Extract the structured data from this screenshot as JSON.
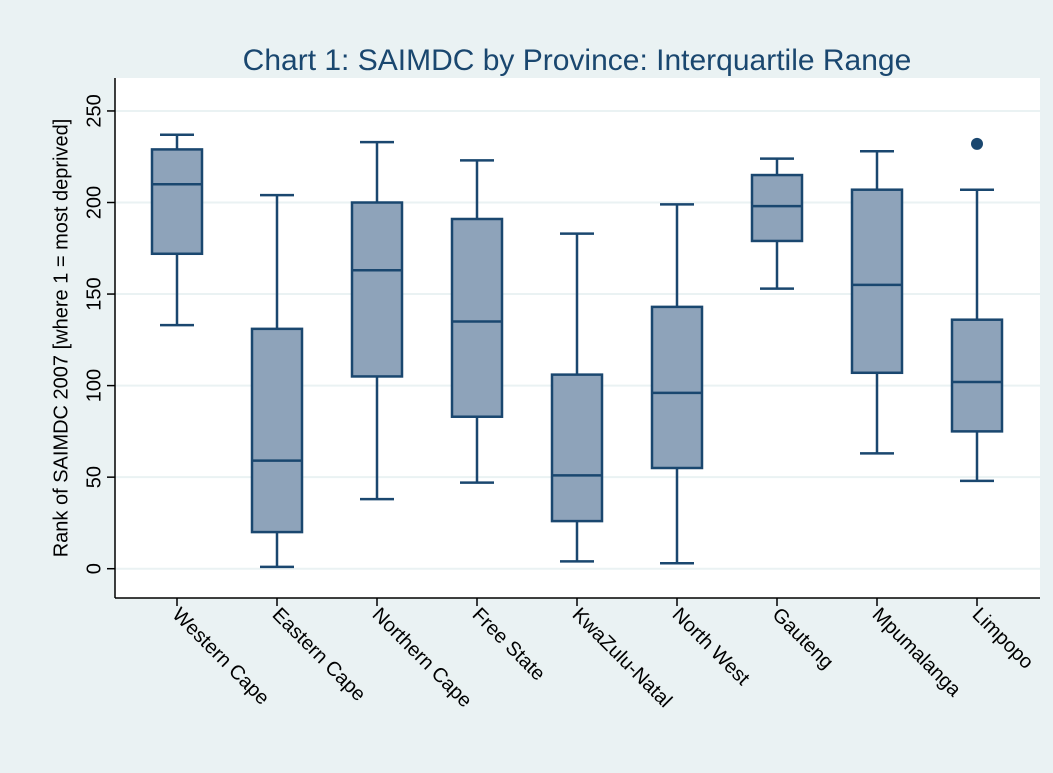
{
  "chart_data": {
    "type": "box",
    "title": "Chart 1: SAIMDC by Province: Interquartile Range",
    "y_label": "Rank of SAIMDC 2007 [where 1 = most deprived]",
    "categories": [
      "Western Cape",
      "Eastern Cape",
      "Northern Cape",
      "Free State",
      "KwaZulu-Natal",
      "North West",
      "Gauteng",
      "Mpumalanga",
      "Limpopo"
    ],
    "whisker_low": [
      133,
      1,
      38,
      47,
      4,
      3,
      153,
      63,
      48
    ],
    "q1": [
      172,
      20,
      105,
      83,
      26,
      55,
      179,
      107,
      75
    ],
    "median": [
      210,
      59,
      163,
      135,
      51,
      96,
      198,
      155,
      102
    ],
    "q3": [
      229,
      131,
      200,
      191,
      106,
      143,
      215,
      207,
      136
    ],
    "whisker_high": [
      237,
      204,
      233,
      223,
      183,
      199,
      224,
      228,
      207
    ],
    "outliers": [
      [],
      [],
      [],
      [],
      [],
      [],
      [],
      [],
      [
        232
      ]
    ],
    "color": "#8ea3ba",
    "line_color": "#1a476f",
    "ylim": [
      -16,
      268
    ],
    "yticks": [
      0,
      50,
      100,
      150,
      200,
      250
    ],
    "grid": true
  }
}
